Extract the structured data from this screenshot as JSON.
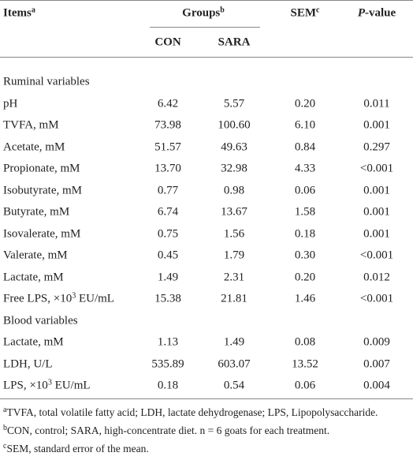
{
  "header": {
    "items": [
      "Items",
      "a"
    ],
    "groups": [
      "Groups",
      "b"
    ],
    "sem": [
      "SEM",
      "c"
    ],
    "p_value": [
      "P",
      "-value"
    ],
    "con": "CON",
    "sara": "SARA"
  },
  "sections": [
    {
      "title": "Ruminal variables",
      "rows": [
        {
          "item": [
            "pH"
          ],
          "values": [
            "6.42",
            "5.57",
            "0.20",
            "0.011"
          ]
        },
        {
          "item": [
            "TVFA, mM"
          ],
          "values": [
            "73.98",
            "100.60",
            "6.10",
            "0.001"
          ]
        },
        {
          "item": [
            "Acetate, mM"
          ],
          "values": [
            "51.57",
            "49.63",
            "0.84",
            "0.297"
          ]
        },
        {
          "item": [
            "Propionate, mM"
          ],
          "values": [
            "13.70",
            "32.98",
            "4.33",
            "<0.001"
          ]
        },
        {
          "item": [
            "Isobutyrate, mM"
          ],
          "values": [
            "0.77",
            "0.98",
            "0.06",
            "0.001"
          ]
        },
        {
          "item": [
            "Butyrate, mM"
          ],
          "values": [
            "6.74",
            "13.67",
            "1.58",
            "0.001"
          ]
        },
        {
          "item": [
            "Isovalerate, mM"
          ],
          "values": [
            "0.75",
            "1.56",
            "0.18",
            "0.001"
          ]
        },
        {
          "item": [
            "Valerate, mM"
          ],
          "values": [
            "0.45",
            "1.79",
            "0.30",
            "<0.001"
          ]
        },
        {
          "item": [
            "Lactate, mM"
          ],
          "values": [
            "1.49",
            "2.31",
            "0.20",
            "0.012"
          ]
        },
        {
          "item": [
            "Free LPS, ×10",
            "3",
            " EU/mL"
          ],
          "values": [
            "15.38",
            "21.81",
            "1.46",
            "<0.001"
          ]
        }
      ]
    },
    {
      "title": "Blood variables",
      "rows": [
        {
          "item": [
            "Lactate, mM"
          ],
          "values": [
            "1.13",
            "1.49",
            "0.08",
            "0.009"
          ]
        },
        {
          "item": [
            "LDH, U/L"
          ],
          "values": [
            "535.89",
            "603.07",
            "13.52",
            "0.007"
          ]
        },
        {
          "item": [
            "LPS, ×10",
            "3",
            " EU/mL"
          ],
          "values": [
            "0.18",
            "0.54",
            "0.06",
            "0.004"
          ]
        }
      ]
    }
  ],
  "footnotes": [
    [
      "a",
      "TVFA, total volatile fatty acid; LDH, lactate dehydrogenase; LPS, Lipopolysaccharide."
    ],
    [
      "b",
      "CON, control; SARA, high-concentrate diet. n = 6 goats for each treatment."
    ],
    [
      "c",
      "SEM, standard error of the mean."
    ]
  ]
}
